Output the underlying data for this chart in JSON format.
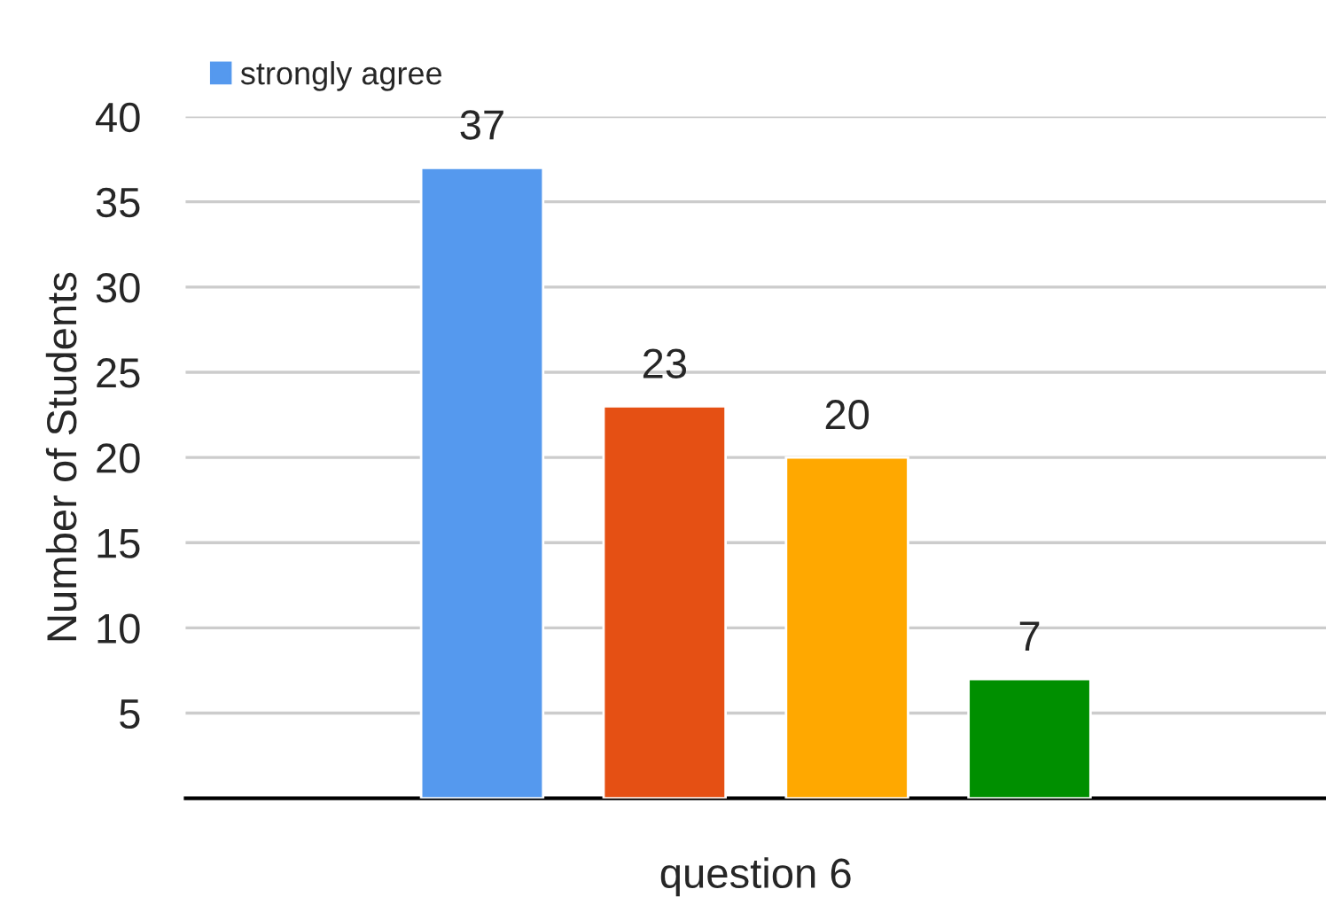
{
  "chart_data": {
    "type": "bar",
    "ylabel": "Number of Students",
    "categories": [
      "question 6"
    ],
    "series": [
      {
        "name": "strongly agree",
        "color": "#5599ee",
        "values": [
          37
        ]
      },
      {
        "color": "#e55014",
        "values": [
          23
        ]
      },
      {
        "color": "#ffa800",
        "values": [
          20
        ]
      },
      {
        "color": "#008f00",
        "values": [
          7
        ]
      }
    ],
    "ylim": [
      0,
      40
    ],
    "yticks": [
      5,
      10,
      15,
      20,
      25,
      30,
      35,
      40
    ],
    "grid": "y",
    "data_labels": true,
    "legend": "top left"
  }
}
